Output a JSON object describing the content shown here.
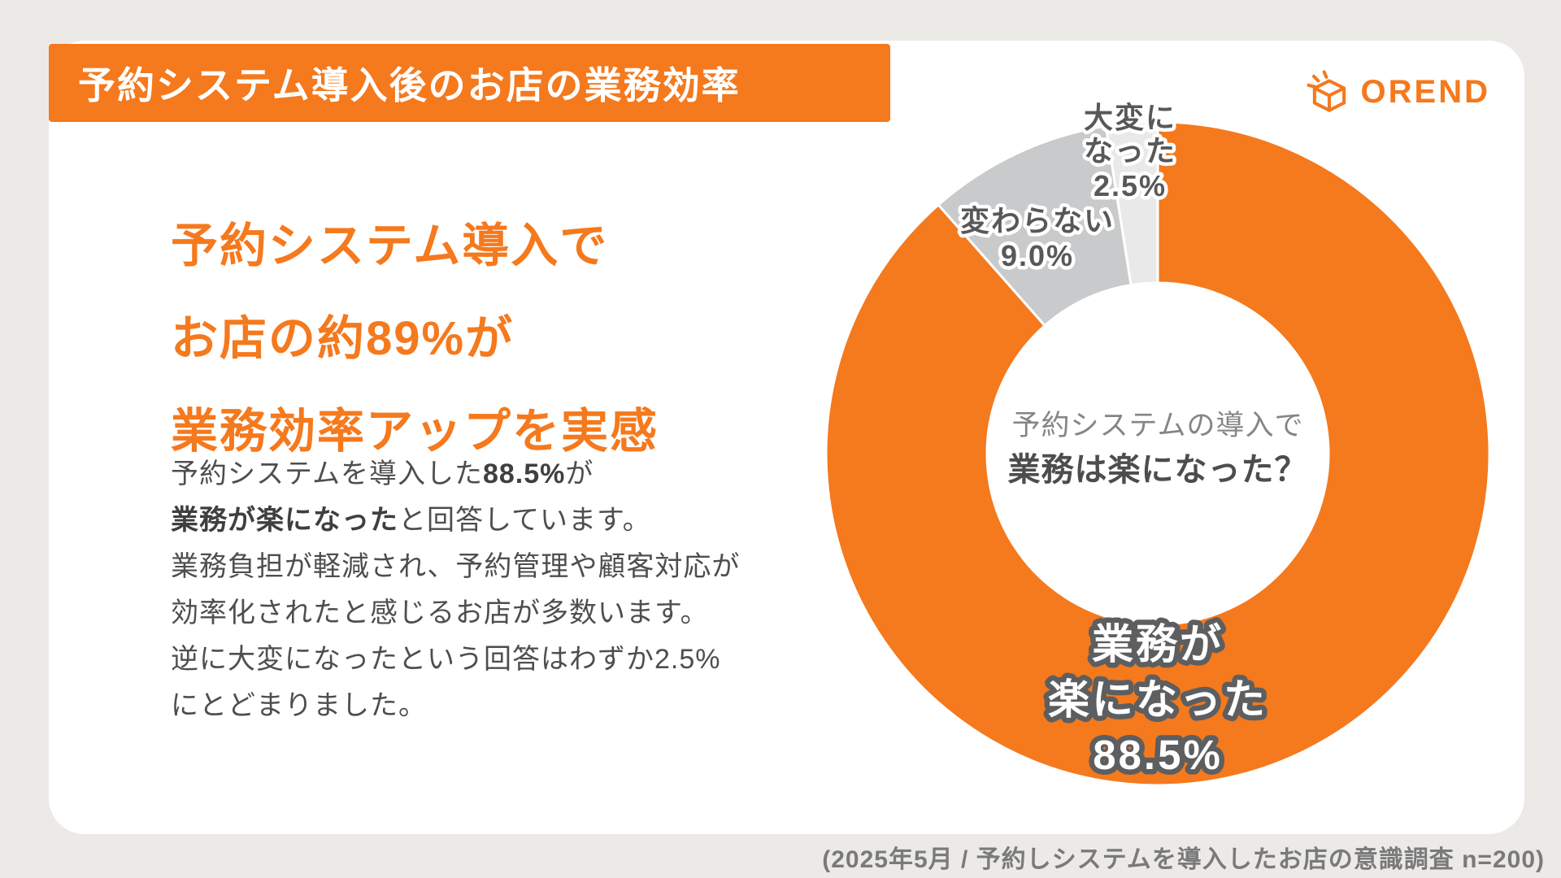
{
  "colors": {
    "brand_orange": "#F5791D",
    "background": "#ECEAE7",
    "card": "#FFFFFF",
    "slice_easy": "#F5791D",
    "slice_same": "#C9CACB",
    "slice_hard": "#E9E9EA"
  },
  "header": {
    "title": "予約システム導入後のお店の業務効率",
    "brand": "OREND"
  },
  "main": {
    "headline_lines": [
      "予約システム導入で",
      "お店の約89%が",
      "業務効率アップを実感"
    ],
    "description": {
      "l1_pre": "予約システムを導入した",
      "l1_bold": "88.5%",
      "l1_post": "が",
      "l2_bold": "業務が楽になった",
      "l2_post": "と回答しています。",
      "l3": "業務負担が軽減され、予約管理や顧客対応が",
      "l4": "効率化されたと感じるお店が多数います。",
      "l5": "逆に大変になったという回答はわずか2.5%",
      "l6": "にとどまりました。"
    }
  },
  "chart_data": {
    "type": "pie",
    "subtype": "donut",
    "title": "予約システムの導入で業務は楽になった？",
    "direction": "clockwise",
    "start_angle_deg": 0,
    "slices": [
      {
        "label": "業務が楽になった",
        "value": 88.5,
        "color": "#F5791D"
      },
      {
        "label": "変わらない",
        "value": 9.0,
        "color": "#C9CACB"
      },
      {
        "label": "大変になった",
        "value": 2.5,
        "color": "#E9E9EA"
      }
    ],
    "center_label_line1": "予約システムの導入で",
    "center_label_line2": "業務は楽になった？",
    "labels": {
      "hard_line1": "大変に",
      "hard_line2": "なった",
      "hard_pct": "2.5%",
      "same_line1": "変わらない",
      "same_pct": "9.0%",
      "easy_line1": "業務が",
      "easy_line2": "楽になった",
      "easy_pct": "88.5%"
    }
  },
  "footer": {
    "note": "(2025年5月 / 予約しシステムを導入したお店の意識調査 n=200)"
  }
}
